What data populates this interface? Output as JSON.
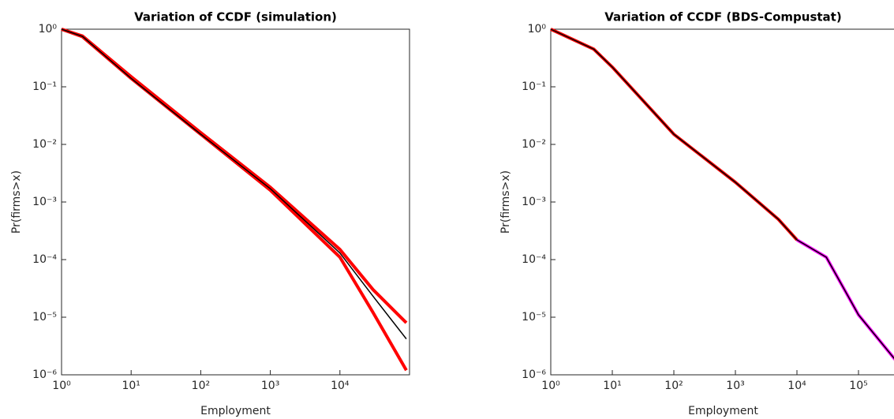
{
  "chart_data": [
    {
      "type": "line",
      "title": "Variation of CCDF (simulation)",
      "xlabel": "Employment",
      "ylabel": "Pr(firms>x)",
      "xscale": "log",
      "yscale": "log",
      "xlim": [
        1,
        100000
      ],
      "ylim": [
        1e-06,
        1
      ],
      "xticks": [
        {
          "value": 1,
          "label": "10⁰"
        },
        {
          "value": 10,
          "label": "10¹"
        },
        {
          "value": 100,
          "label": "10²"
        },
        {
          "value": 1000,
          "label": "10³"
        },
        {
          "value": 10000,
          "label": "10⁴"
        }
      ],
      "yticks": [
        {
          "value": 1e-06,
          "label": "10⁻⁶"
        },
        {
          "value": 1e-05,
          "label": "10⁻⁵"
        },
        {
          "value": 0.0001,
          "label": "10⁻⁴"
        },
        {
          "value": 0.001,
          "label": "10⁻³"
        },
        {
          "value": 0.01,
          "label": "10⁻²"
        },
        {
          "value": 0.1,
          "label": "10⁻¹"
        },
        {
          "value": 1,
          "label": "10⁰"
        }
      ],
      "series": [
        {
          "color": "#ff0000",
          "x": [
            1,
            2,
            10,
            100,
            1000,
            10000,
            30000,
            90000
          ],
          "values": [
            1,
            0.76,
            0.15,
            0.016,
            0.0018,
            0.00015,
            3e-05,
            8e-06
          ]
        },
        {
          "color": "#ff0000",
          "x": [
            1,
            2,
            10,
            100,
            1000,
            10000,
            30000,
            90000
          ],
          "values": [
            1,
            0.74,
            0.14,
            0.015,
            0.0016,
            0.00011,
            1.2e-05,
            1.2e-06
          ]
        },
        {
          "color": "#000000",
          "x": [
            1,
            2,
            10,
            100,
            1000,
            10000,
            30000,
            90000
          ],
          "values": [
            1,
            0.75,
            0.14,
            0.015,
            0.0017,
            0.00013,
            2.3e-05,
            4.2e-06
          ]
        }
      ]
    },
    {
      "type": "line",
      "title": "Variation of CCDF (BDS-Compustat)",
      "xlabel": "Employment",
      "ylabel": "Pr(firms>x)",
      "xscale": "log",
      "yscale": "log",
      "xlim": [
        1,
        400000
      ],
      "ylim": [
        1e-06,
        1
      ],
      "xticks": [
        {
          "value": 1,
          "label": "10⁰"
        },
        {
          "value": 10,
          "label": "10¹"
        },
        {
          "value": 100,
          "label": "10²"
        },
        {
          "value": 1000,
          "label": "10³"
        },
        {
          "value": 10000,
          "label": "10⁴"
        },
        {
          "value": 100000,
          "label": "10⁵"
        }
      ],
      "yticks": [
        {
          "value": 1e-06,
          "label": "10⁻⁶"
        },
        {
          "value": 1e-05,
          "label": "10⁻⁵"
        },
        {
          "value": 0.0001,
          "label": "10⁻⁴"
        },
        {
          "value": 0.001,
          "label": "10⁻³"
        },
        {
          "value": 0.01,
          "label": "10⁻²"
        },
        {
          "value": 0.1,
          "label": "10⁻¹"
        },
        {
          "value": 1,
          "label": "10⁰"
        }
      ],
      "series": [
        {
          "color": "#ff0000",
          "x": [
            1,
            5,
            10,
            100,
            1000,
            5000,
            10000
          ],
          "values": [
            1,
            0.45,
            0.22,
            0.015,
            0.0022,
            0.0005,
            0.00022
          ]
        },
        {
          "color": "#ff00ff",
          "x": [
            10000,
            30000,
            100000,
            400000
          ],
          "values": [
            0.00022,
            0.00011,
            1.1e-05,
            1.8e-06
          ]
        },
        {
          "color": "#000000",
          "x": [
            1,
            5,
            10,
            100,
            1000,
            5000,
            10000,
            30000,
            100000,
            400000
          ],
          "values": [
            1,
            0.45,
            0.22,
            0.015,
            0.0022,
            0.0005,
            0.00022,
            0.00011,
            1.1e-05,
            1.8e-06
          ]
        }
      ]
    }
  ]
}
